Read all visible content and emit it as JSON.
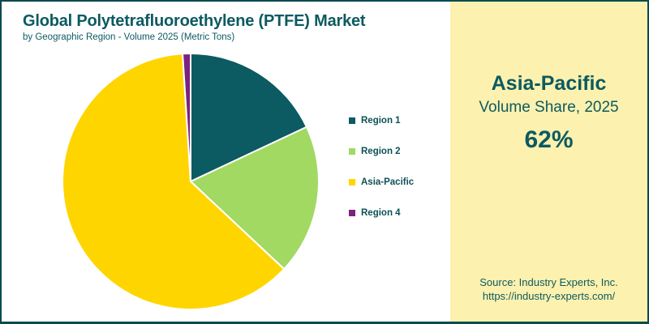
{
  "header": {
    "title": "Global Polytetrafluoroethylene (PTFE) Market",
    "subtitle": "by Geographic Region - Volume 2025 (Metric Tons)"
  },
  "chart_data": {
    "type": "pie",
    "title": "Global Polytetrafluoroethylene (PTFE) Market",
    "subtitle": "by Geographic Region - Volume 2025 (Metric Tons)",
    "categories": [
      "Region 1",
      "Region 2",
      "Asia-Pacific",
      "Region 4"
    ],
    "values": [
      18,
      19,
      62,
      1
    ],
    "unit": "percent",
    "colors": [
      "#0c5a62",
      "#a1d963",
      "#ffd500",
      "#7d2180"
    ],
    "start_angle_deg": 0,
    "direction": "clockwise",
    "legend_position": "right",
    "slice_border_color": "#ffffff"
  },
  "highlight_panel": {
    "region": "Asia-Pacific",
    "metric": "Volume Share, 2025",
    "value": "62%",
    "background": "#fcf1ae"
  },
  "source": {
    "line1": "Source: Industry Experts, Inc.",
    "line2": "https://industry-experts.com/"
  },
  "colors": {
    "accent_teal": "#0c5a62",
    "frame_border": "#0a4a50",
    "panel_background": "#fcf1ae"
  }
}
